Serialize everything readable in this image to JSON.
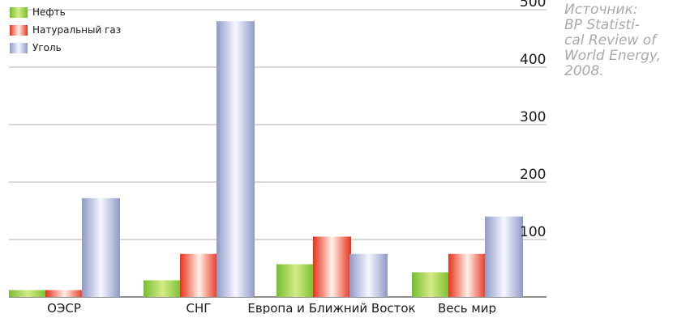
{
  "chart_data": {
    "type": "bar",
    "categories": [
      "ОЭСР",
      "СНГ",
      "Европа и Ближний Восток",
      "Весь мир"
    ],
    "series": [
      {
        "name": "Нефть",
        "values": [
          12,
          29,
          57,
          43
        ]
      },
      {
        "name": "Натуральный газ",
        "values": [
          12,
          75,
          105,
          75
        ]
      },
      {
        "name": "Уголь",
        "values": [
          172,
          480,
          75,
          140
        ]
      }
    ],
    "yticks": [
      100,
      200,
      300,
      400,
      500
    ],
    "ylim": [
      0,
      510
    ],
    "grid": true,
    "legend_position": "top-left",
    "colors": {
      "Нефть": {
        "light": "#d5ea87",
        "dark": "#74bf2d"
      },
      "Натуральный газ": {
        "light": "#fff0e8",
        "dark": "#e8321a"
      },
      "Уголь": {
        "light": "#f6f7ff",
        "dark": "#8f99c7"
      }
    }
  },
  "source_note": {
    "lines": [
      "Источник:",
      "BP Statisti-",
      "cal Review of",
      "World Energy,",
      "2008."
    ]
  }
}
